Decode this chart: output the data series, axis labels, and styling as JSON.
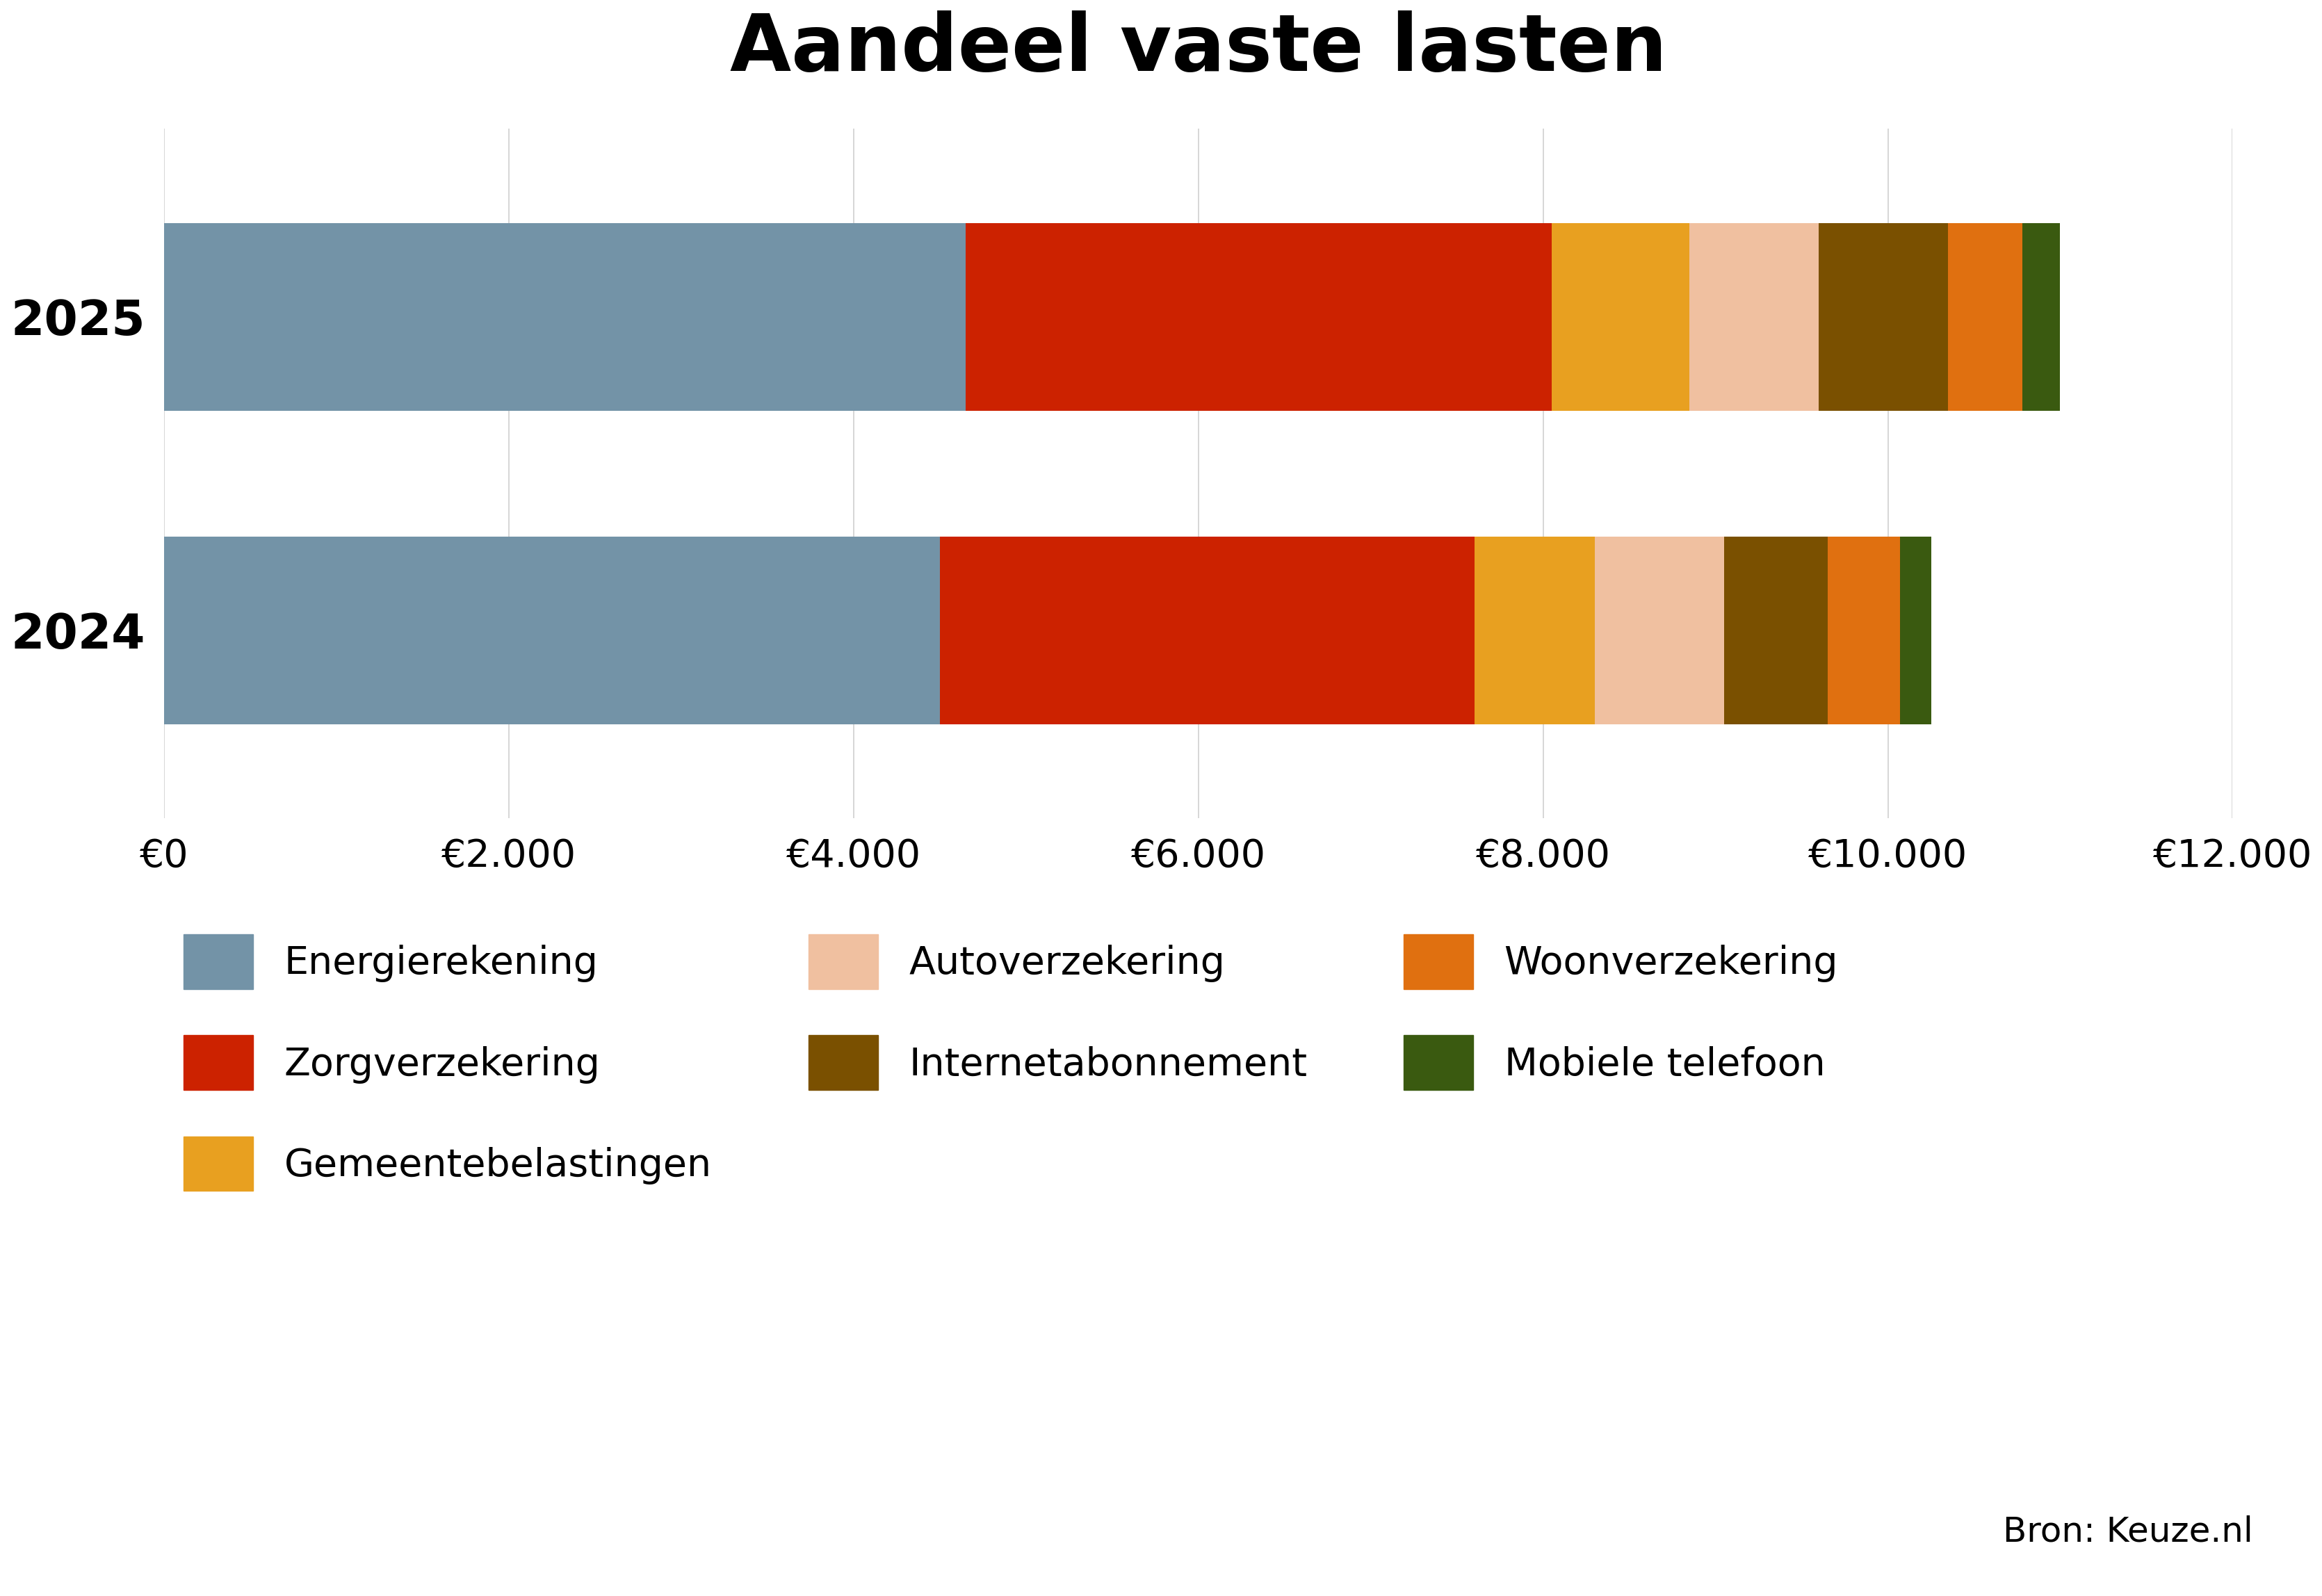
{
  "title": "Aandeel vaste lasten",
  "years": [
    "2025",
    "2024"
  ],
  "categories": [
    "Energierekening",
    "Zorgverzekering",
    "Gemeentebelastingen",
    "Autoverzekering",
    "Internetabonnement",
    "Woonverzekering",
    "Mobiele telefoon"
  ],
  "colors": [
    "#7393a7",
    "#cc2200",
    "#e8a020",
    "#f0c0a0",
    "#7a5000",
    "#e07010",
    "#3a5a10"
  ],
  "values_2025": [
    4650,
    3400,
    800,
    750,
    750,
    430,
    220
  ],
  "values_2024": [
    4500,
    3100,
    700,
    750,
    600,
    420,
    180
  ],
  "xlim": [
    0,
    12000
  ],
  "xticks": [
    0,
    2000,
    4000,
    6000,
    8000,
    10000,
    12000
  ],
  "xtick_labels": [
    "€0",
    "€2.000",
    "€4.000",
    "€6.000",
    "€8.000",
    "€10.000",
    "€12.000"
  ],
  "legend_order": [
    [
      "Energierekening",
      "#7393a7"
    ],
    [
      "Zorgverzekering",
      "#cc2200"
    ],
    [
      "Gemeentebelastingen",
      "#e8a020"
    ],
    [
      "Autoverzekering",
      "#f0c0a0"
    ],
    [
      "Internetabonnement",
      "#7a5000"
    ],
    [
      "Woonverzekering",
      "#e07010"
    ],
    [
      "Mobiele telefoon",
      "#3a5a10"
    ]
  ],
  "source_text": "Bron: Keuze.nl",
  "background_color": "#ffffff",
  "bar_height": 0.6
}
